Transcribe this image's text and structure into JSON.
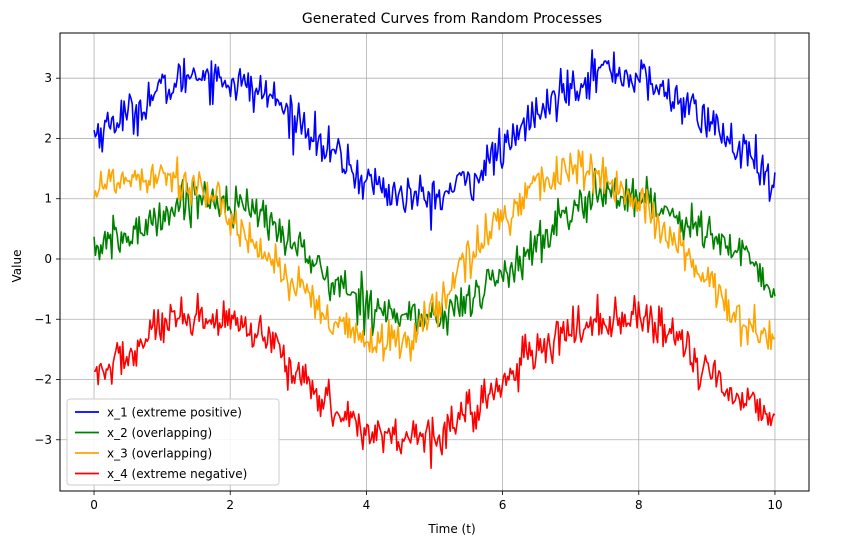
{
  "chart_data": {
    "type": "line",
    "title": "Generated Curves from Random Processes",
    "xlabel": "Time (t)",
    "ylabel": "Value",
    "xlim": [
      -0.5,
      10.5
    ],
    "ylim": [
      -3.85,
      3.75
    ],
    "xticks": [
      0,
      2,
      4,
      6,
      8,
      10
    ],
    "xtick_labels": [
      "0",
      "2",
      "4",
      "6",
      "8",
      "10"
    ],
    "yticks": [
      -3,
      -2,
      -1,
      0,
      1,
      2,
      3
    ],
    "ytick_labels": [
      "−3",
      "−2",
      "−1",
      "0",
      "1",
      "2",
      "3"
    ],
    "grid": true,
    "legend_position": "lower-left",
    "x_range": [
      0,
      10
    ],
    "points_per_series": 500,
    "series": [
      {
        "name": "x_1 (extreme positive)",
        "color": "#0000ff",
        "x": [
          0,
          0.5,
          1.0,
          1.5,
          2.0,
          2.5,
          3.0,
          3.5,
          4.0,
          4.5,
          5.0,
          5.5,
          6.0,
          6.5,
          7.0,
          7.5,
          8.0,
          8.5,
          9.0,
          9.5,
          10.0
        ],
        "y": [
          2.1,
          2.4,
          2.8,
          3.1,
          2.95,
          2.75,
          2.3,
          1.75,
          1.3,
          1.05,
          1.0,
          1.3,
          1.8,
          2.4,
          2.9,
          3.15,
          3.0,
          2.7,
          2.3,
          1.8,
          1.2
        ]
      },
      {
        "name": "x_2 (overlapping)",
        "color": "#008000",
        "x": [
          0,
          0.5,
          1.0,
          1.5,
          2.0,
          2.5,
          3.0,
          3.5,
          4.0,
          4.5,
          5.0,
          5.5,
          6.0,
          6.5,
          7.0,
          7.5,
          8.0,
          8.5,
          9.0,
          9.5,
          10.0
        ],
        "y": [
          0.2,
          0.35,
          0.75,
          1.05,
          0.95,
          0.7,
          0.2,
          -0.4,
          -0.7,
          -0.95,
          -1.0,
          -0.7,
          -0.25,
          0.2,
          0.8,
          1.1,
          1.05,
          0.75,
          0.45,
          0.05,
          -0.5
        ]
      },
      {
        "name": "x_3 (overlapping)",
        "color": "#ffa500",
        "x": [
          0,
          0.5,
          1.0,
          1.5,
          2.0,
          2.5,
          3.0,
          3.5,
          4.0,
          4.5,
          5.0,
          5.5,
          6.0,
          6.5,
          7.0,
          7.5,
          8.0,
          8.5,
          9.0,
          9.5,
          10.0
        ],
        "y": [
          1.2,
          1.35,
          1.45,
          1.2,
          0.7,
          0.1,
          -0.5,
          -1.1,
          -1.35,
          -1.4,
          -0.85,
          0.0,
          0.7,
          1.25,
          1.5,
          1.35,
          0.9,
          0.3,
          -0.4,
          -1.0,
          -1.35
        ]
      },
      {
        "name": "x_4 (extreme negative)",
        "color": "#ff0000",
        "x": [
          0,
          0.5,
          1.0,
          1.5,
          2.0,
          2.5,
          3.0,
          3.5,
          4.0,
          4.5,
          5.0,
          5.5,
          6.0,
          6.5,
          7.0,
          7.5,
          8.0,
          8.5,
          9.0,
          9.5,
          10.0
        ],
        "y": [
          -1.95,
          -1.6,
          -1.1,
          -1.05,
          -1.05,
          -1.35,
          -1.9,
          -2.45,
          -2.85,
          -2.95,
          -2.9,
          -2.55,
          -2.05,
          -1.55,
          -1.2,
          -1.0,
          -1.0,
          -1.3,
          -1.85,
          -2.3,
          -2.6
        ]
      }
    ]
  }
}
